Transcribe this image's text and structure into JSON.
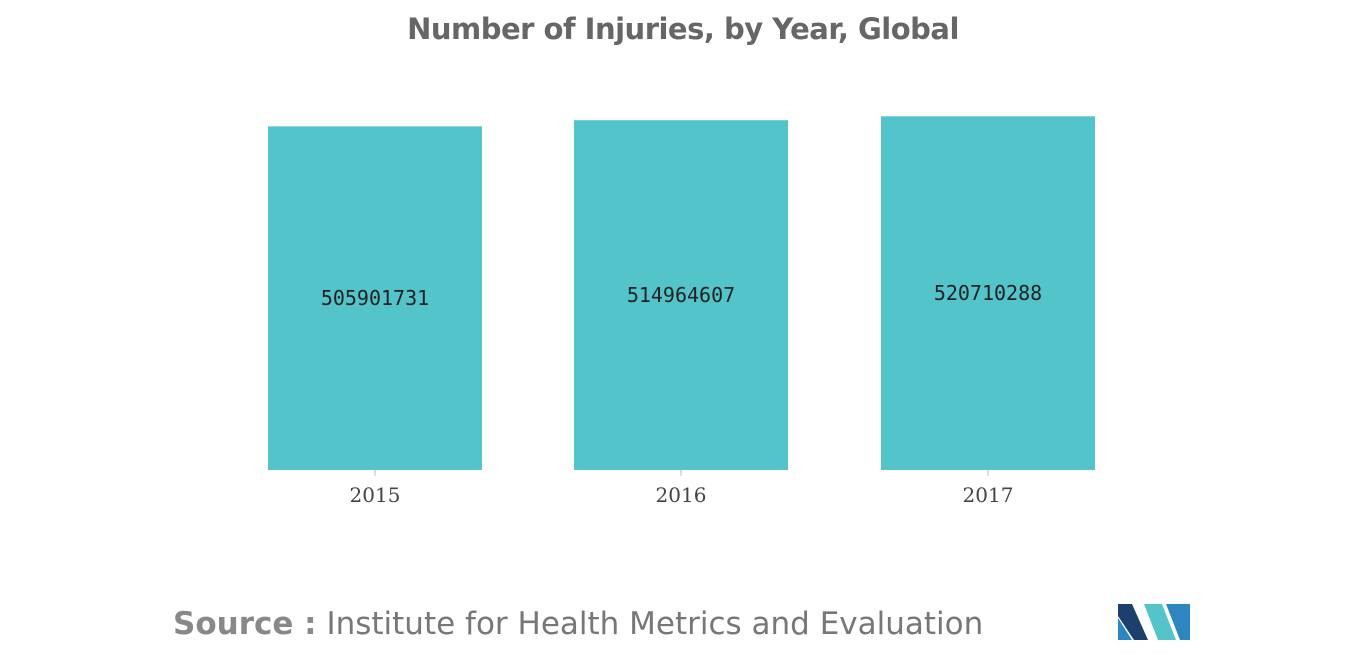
{
  "chart_data": {
    "type": "bar",
    "title": "Number of Injuries, by Year, Global",
    "categories": [
      "2015",
      "2016",
      "2017"
    ],
    "values": [
      505901731,
      514964607,
      520710288
    ],
    "value_labels": [
      "505901731",
      "514964607",
      "520710288"
    ],
    "xlabel": "",
    "ylabel": "",
    "ylim": [
      0,
      530000000
    ],
    "grid": false,
    "legend": "none",
    "bar_color": "#52C4CA"
  },
  "source": {
    "label": "Source :",
    "text": "Institute for Health Metrics and Evaluation"
  },
  "logo": {
    "icon": "mordor-intelligence-logo",
    "colors": [
      "#1C3F6E",
      "#2E86C1",
      "#52C4CA"
    ]
  }
}
